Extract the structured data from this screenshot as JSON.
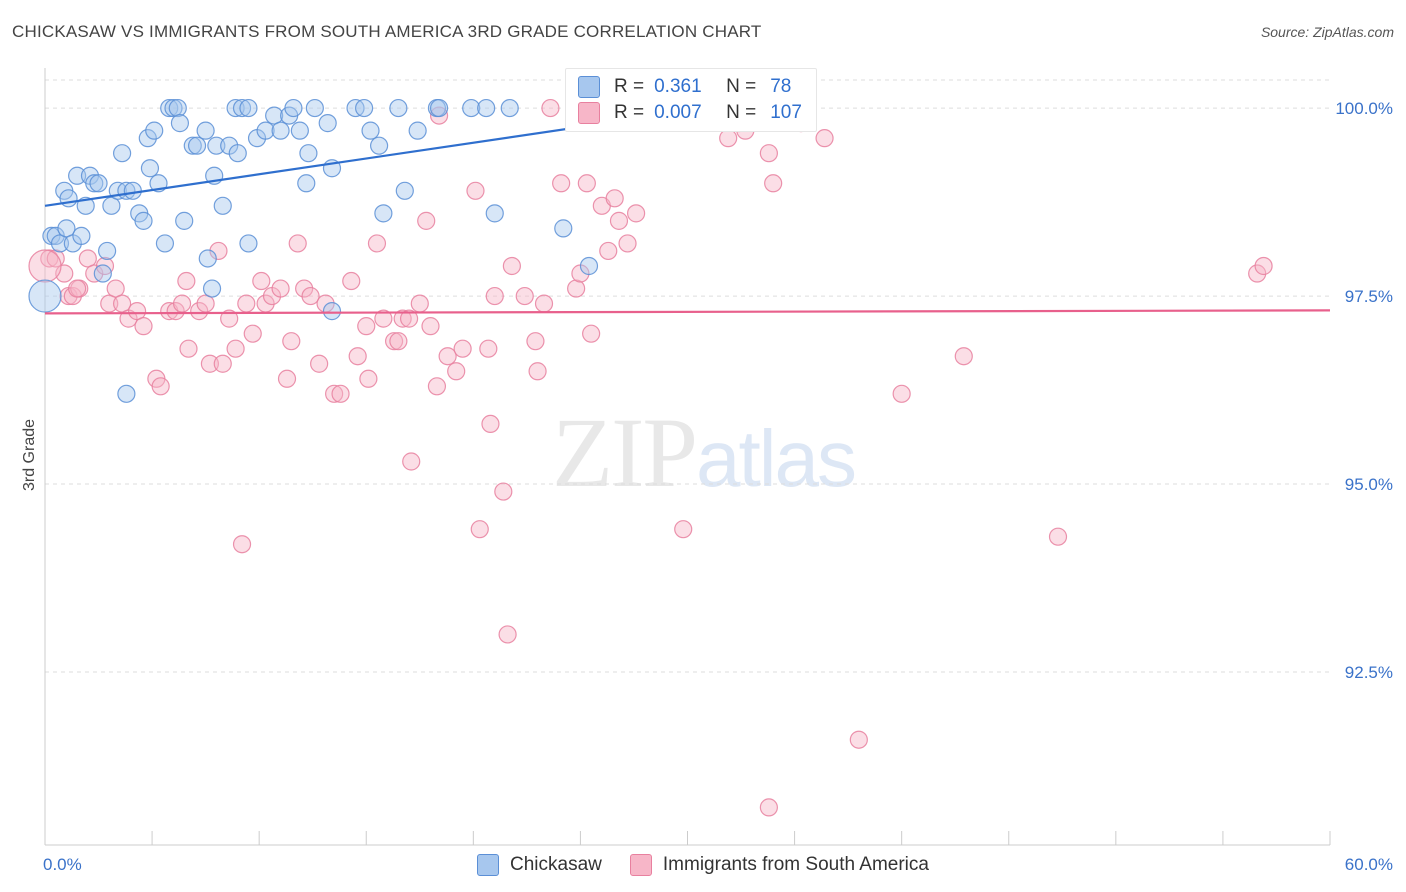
{
  "title": "CHICKASAW VS IMMIGRANTS FROM SOUTH AMERICA 3RD GRADE CORRELATION CHART",
  "source": "Source: ZipAtlas.com",
  "watermark": {
    "zip": "ZIP",
    "atlas": "atlas"
  },
  "legend": {
    "r_label": "R =",
    "n_label": "N =",
    "rows": [
      {
        "r": "0.361",
        "n": "78",
        "swatch": "#a7c7ee"
      },
      {
        "r": "0.007",
        "n": "107",
        "swatch": "#f7b6c8"
      }
    ]
  },
  "chart_data": {
    "type": "scatter",
    "title": "CHICKASAW VS IMMIGRANTS FROM SOUTH AMERICA 3RD GRADE CORRELATION CHART",
    "xlabel": "",
    "ylabel": "3rd Grade",
    "xlim": [
      0,
      60
    ],
    "ylim": [
      90.2,
      100.4
    ],
    "x_tick_labels": [
      {
        "value": 0,
        "label": "0.0%"
      },
      {
        "value": 60,
        "label": "60.0%"
      }
    ],
    "y_tick_labels": [
      {
        "value": 100,
        "label": "100.0%"
      },
      {
        "value": 97.5,
        "label": "97.5%"
      },
      {
        "value": 95,
        "label": "95.0%"
      },
      {
        "value": 92.5,
        "label": "92.5%"
      }
    ],
    "grid": true,
    "legend_position": "top-center",
    "series": [
      {
        "name": "Chickasaw",
        "color": "#5b8fd6",
        "fill": "#a7c7ee",
        "trend": {
          "x": [
            0,
            30.5
          ],
          "y": [
            98.7,
            99.98
          ],
          "color": "#2f6fce"
        },
        "points": [
          [
            0.3,
            98.3
          ],
          [
            0.5,
            98.3
          ],
          [
            0.7,
            98.2
          ],
          [
            0.9,
            98.9
          ],
          [
            1.0,
            98.4
          ],
          [
            1.1,
            98.8
          ],
          [
            1.3,
            98.2
          ],
          [
            1.5,
            99.1
          ],
          [
            1.7,
            98.3
          ],
          [
            1.9,
            98.7
          ],
          [
            2.1,
            99.1
          ],
          [
            2.3,
            99.0
          ],
          [
            2.5,
            99.0
          ],
          [
            2.7,
            97.8
          ],
          [
            2.9,
            98.1
          ],
          [
            3.1,
            98.7
          ],
          [
            3.4,
            98.9
          ],
          [
            3.6,
            99.4
          ],
          [
            3.8,
            98.9
          ],
          [
            4.1,
            98.9
          ],
          [
            4.4,
            98.6
          ],
          [
            4.6,
            98.5
          ],
          [
            4.8,
            99.6
          ],
          [
            4.9,
            99.2
          ],
          [
            5.1,
            99.7
          ],
          [
            5.3,
            99.0
          ],
          [
            5.6,
            98.2
          ],
          [
            5.8,
            100.0
          ],
          [
            6.0,
            100.0
          ],
          [
            6.2,
            100.0
          ],
          [
            6.3,
            99.8
          ],
          [
            6.5,
            98.5
          ],
          [
            6.9,
            99.5
          ],
          [
            7.1,
            99.5
          ],
          [
            7.5,
            99.7
          ],
          [
            7.6,
            98.0
          ],
          [
            7.8,
            97.6
          ],
          [
            7.9,
            99.1
          ],
          [
            8.0,
            99.5
          ],
          [
            8.3,
            98.7
          ],
          [
            8.6,
            99.5
          ],
          [
            8.9,
            100.0
          ],
          [
            9.0,
            99.4
          ],
          [
            9.2,
            100.0
          ],
          [
            9.5,
            100.0
          ],
          [
            9.5,
            98.2
          ],
          [
            9.9,
            99.6
          ],
          [
            10.3,
            99.7
          ],
          [
            10.7,
            99.9
          ],
          [
            11.0,
            99.7
          ],
          [
            11.4,
            99.9
          ],
          [
            11.6,
            100.0
          ],
          [
            11.9,
            99.7
          ],
          [
            12.2,
            99.0
          ],
          [
            12.3,
            99.4
          ],
          [
            12.6,
            100.0
          ],
          [
            13.2,
            99.8
          ],
          [
            13.4,
            99.2
          ],
          [
            13.4,
            97.3
          ],
          [
            14.5,
            100.0
          ],
          [
            14.9,
            100.0
          ],
          [
            15.2,
            99.7
          ],
          [
            15.6,
            99.5
          ],
          [
            15.8,
            98.6
          ],
          [
            16.5,
            100.0
          ],
          [
            16.8,
            98.9
          ],
          [
            17.4,
            99.7
          ],
          [
            18.3,
            100.0
          ],
          [
            18.4,
            100.0
          ],
          [
            19.9,
            100.0
          ],
          [
            20.6,
            100.0
          ],
          [
            21.0,
            98.6
          ],
          [
            21.7,
            100.0
          ],
          [
            24.2,
            98.4
          ],
          [
            25.4,
            97.9
          ],
          [
            31.3,
            100.0
          ],
          [
            3.8,
            96.2
          ],
          [
            0.0,
            97.5
          ]
        ]
      },
      {
        "name": "Immigrants from South America",
        "color": "#e8809f",
        "fill": "#f7b6c8",
        "trend": {
          "x": [
            0,
            60
          ],
          "y": [
            97.27,
            97.31
          ],
          "color": "#e8608c"
        },
        "points": [
          [
            0.2,
            98.0
          ],
          [
            0.5,
            98.0
          ],
          [
            0.9,
            97.8
          ],
          [
            1.1,
            97.5
          ],
          [
            1.3,
            97.5
          ],
          [
            1.6,
            97.6
          ],
          [
            2.0,
            98.0
          ],
          [
            2.3,
            97.8
          ],
          [
            2.8,
            97.9
          ],
          [
            3.0,
            97.4
          ],
          [
            3.3,
            97.6
          ],
          [
            3.6,
            97.4
          ],
          [
            3.9,
            97.2
          ],
          [
            4.3,
            97.3
          ],
          [
            4.6,
            97.1
          ],
          [
            5.2,
            96.4
          ],
          [
            5.4,
            96.3
          ],
          [
            5.8,
            97.3
          ],
          [
            6.1,
            97.3
          ],
          [
            6.4,
            97.4
          ],
          [
            6.6,
            97.7
          ],
          [
            6.7,
            96.8
          ],
          [
            7.2,
            97.3
          ],
          [
            7.5,
            97.4
          ],
          [
            7.7,
            96.6
          ],
          [
            8.1,
            98.1
          ],
          [
            8.3,
            96.6
          ],
          [
            8.6,
            97.2
          ],
          [
            8.9,
            96.8
          ],
          [
            9.2,
            94.2
          ],
          [
            9.4,
            97.4
          ],
          [
            9.7,
            97.0
          ],
          [
            10.1,
            97.7
          ],
          [
            10.3,
            97.4
          ],
          [
            10.6,
            97.5
          ],
          [
            11.0,
            97.6
          ],
          [
            11.3,
            96.4
          ],
          [
            11.5,
            96.9
          ],
          [
            11.8,
            98.2
          ],
          [
            12.1,
            97.6
          ],
          [
            12.4,
            97.5
          ],
          [
            12.8,
            96.6
          ],
          [
            13.1,
            97.4
          ],
          [
            13.5,
            96.2
          ],
          [
            13.8,
            96.2
          ],
          [
            14.3,
            97.7
          ],
          [
            14.6,
            96.7
          ],
          [
            15.0,
            97.1
          ],
          [
            15.1,
            96.4
          ],
          [
            15.5,
            98.2
          ],
          [
            15.8,
            97.2
          ],
          [
            16.3,
            96.9
          ],
          [
            16.5,
            96.9
          ],
          [
            16.7,
            97.2
          ],
          [
            17.0,
            97.2
          ],
          [
            17.1,
            95.3
          ],
          [
            17.5,
            97.4
          ],
          [
            17.8,
            98.5
          ],
          [
            18.0,
            97.1
          ],
          [
            18.3,
            96.3
          ],
          [
            18.4,
            99.9
          ],
          [
            18.8,
            96.7
          ],
          [
            19.2,
            96.5
          ],
          [
            19.5,
            96.8
          ],
          [
            20.1,
            98.9
          ],
          [
            20.3,
            94.4
          ],
          [
            20.7,
            96.8
          ],
          [
            20.8,
            95.8
          ],
          [
            21.0,
            97.5
          ],
          [
            21.4,
            94.9
          ],
          [
            21.6,
            93.0
          ],
          [
            21.8,
            97.9
          ],
          [
            22.4,
            97.5
          ],
          [
            22.9,
            96.9
          ],
          [
            23.0,
            96.5
          ],
          [
            23.3,
            97.4
          ],
          [
            23.6,
            100.0
          ],
          [
            24.1,
            99.0
          ],
          [
            24.8,
            97.6
          ],
          [
            25.0,
            97.8
          ],
          [
            25.3,
            99.0
          ],
          [
            25.5,
            97.0
          ],
          [
            26.0,
            98.7
          ],
          [
            26.3,
            98.1
          ],
          [
            26.6,
            98.8
          ],
          [
            26.8,
            98.5
          ],
          [
            27.2,
            98.2
          ],
          [
            27.6,
            98.6
          ],
          [
            29.8,
            94.4
          ],
          [
            31.9,
            99.6
          ],
          [
            32.4,
            99.8
          ],
          [
            32.7,
            99.7
          ],
          [
            32.9,
            99.9
          ],
          [
            33.8,
            99.4
          ],
          [
            33.8,
            90.7
          ],
          [
            34.0,
            99.0
          ],
          [
            35.3,
            99.8
          ],
          [
            35.6,
            100.0
          ],
          [
            36.4,
            99.6
          ],
          [
            38.0,
            91.6
          ],
          [
            40.0,
            96.2
          ],
          [
            42.9,
            96.7
          ],
          [
            47.3,
            94.3
          ],
          [
            56.6,
            97.8
          ],
          [
            56.9,
            97.9
          ],
          [
            0.0,
            97.9
          ],
          [
            1.5,
            97.6
          ]
        ]
      }
    ]
  }
}
